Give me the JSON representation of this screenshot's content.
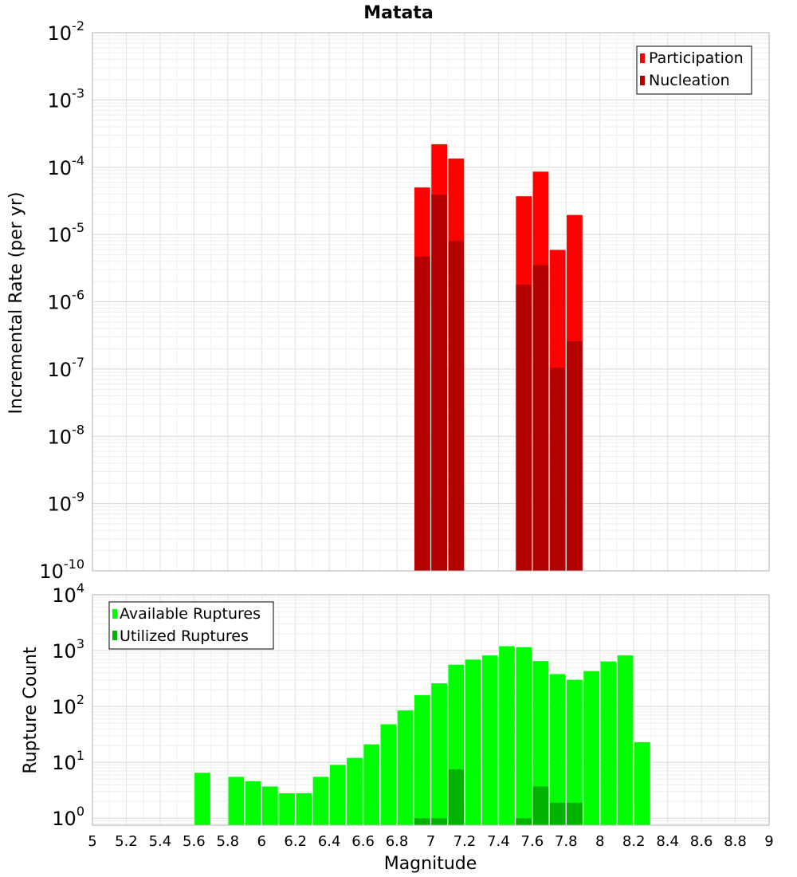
{
  "chart_data": [
    {
      "type": "bar",
      "title": "Matata",
      "xlabel": "",
      "ylabel": "Incremental Rate (per yr)",
      "yscale": "log",
      "ylim": [
        1e-10,
        0.01
      ],
      "xlim": [
        5,
        9
      ],
      "bin_width": 0.1,
      "y_tick_exponents": [
        "-10",
        "-9",
        "-8",
        "-7",
        "-6",
        "-5",
        "-4",
        "-3",
        "-2"
      ],
      "legend": {
        "placement": "top-right",
        "entries": [
          "Participation",
          "Nucleation"
        ]
      },
      "series": [
        {
          "name": "Participation",
          "color": "#ff0000",
          "x": [
            6.95,
            7.05,
            7.15,
            7.55,
            7.65,
            7.75,
            7.85
          ],
          "values": [
            5e-05,
            0.00022,
            0.000135,
            3.7e-05,
            8.6e-05,
            5.9e-06,
            1.95e-05
          ]
        },
        {
          "name": "Nucleation",
          "color": "#b30000",
          "x": [
            6.95,
            7.05,
            7.15,
            7.55,
            7.65,
            7.75,
            7.85
          ],
          "values": [
            4.7e-06,
            3.9e-05,
            8e-06,
            1.8e-06,
            3.5e-06,
            1.05e-07,
            2.6e-07
          ]
        }
      ]
    },
    {
      "type": "bar",
      "xlabel": "Magnitude",
      "ylabel": "Rupture Count",
      "yscale": "log",
      "ylim": [
        0.75,
        10000
      ],
      "xlim": [
        5,
        9
      ],
      "bin_width": 0.1,
      "x_ticks": [
        "5",
        "5.2",
        "5.4",
        "5.6",
        "5.8",
        "6",
        "6.2",
        "6.4",
        "6.6",
        "6.8",
        "7",
        "7.2",
        "7.4",
        "7.6",
        "7.8",
        "8",
        "8.2",
        "8.4",
        "8.6",
        "8.8",
        "9"
      ],
      "y_tick_exponents": [
        "0",
        "1",
        "2",
        "3",
        "4"
      ],
      "legend": {
        "placement": "top-left",
        "entries": [
          "Available Ruptures",
          "Utilized Ruptures"
        ]
      },
      "series": [
        {
          "name": "Available Ruptures",
          "color": "#00ff00",
          "x": [
            5.65,
            5.85,
            5.95,
            6.05,
            6.15,
            6.25,
            6.35,
            6.45,
            6.55,
            6.65,
            6.75,
            6.85,
            6.95,
            7.05,
            7.15,
            7.25,
            7.35,
            7.45,
            7.55,
            7.65,
            7.75,
            7.85,
            7.95,
            8.05,
            8.15,
            8.25
          ],
          "values": [
            6.5,
            5.5,
            4.6,
            3.7,
            2.8,
            2.8,
            5.5,
            9,
            12,
            21,
            48,
            85,
            160,
            260,
            560,
            690,
            820,
            1200,
            1150,
            650,
            380,
            300,
            430,
            640,
            820,
            23
          ]
        },
        {
          "name": "Utilized Ruptures",
          "color": "#00b300",
          "x": [
            6.95,
            7.05,
            7.15,
            7.55,
            7.65,
            7.75,
            7.85
          ],
          "values": [
            1,
            1,
            7.5,
            1,
            3.7,
            1.9,
            1.9
          ]
        }
      ]
    }
  ]
}
